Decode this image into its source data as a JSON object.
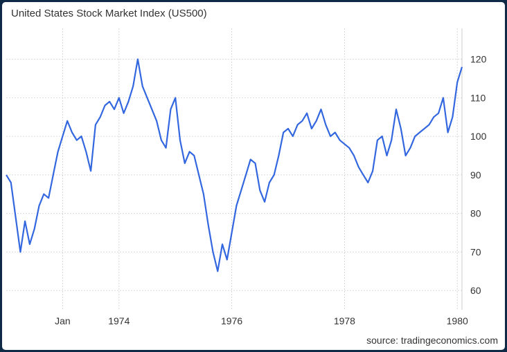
{
  "header": {
    "title": "United States Stock Market Index (US500)"
  },
  "footer": {
    "source": "source: tradingeconomics.com"
  },
  "colors": {
    "line": "#3367e0",
    "grid": "#d9d9d9",
    "frame": "#0e2a47"
  },
  "chart_data": {
    "type": "line",
    "title": "United States Stock Market Index (US500)",
    "x_tick_labels": [
      "Jan",
      "1974",
      "1976",
      "1978",
      "1980"
    ],
    "y_ticks": [
      60,
      70,
      80,
      90,
      100,
      110,
      120
    ],
    "xlim": [
      "1972-01",
      "1980-02"
    ],
    "ylim": [
      55,
      128
    ],
    "grid": true,
    "legend": "none",
    "series": [
      {
        "x": [
          "1972-01",
          "1972-02",
          "1972-03",
          "1972-04",
          "1972-05",
          "1972-06",
          "1972-07",
          "1972-08",
          "1972-09",
          "1972-10",
          "1972-11",
          "1972-12",
          "1973-01",
          "1973-02",
          "1973-03",
          "1973-04",
          "1973-05",
          "1973-06",
          "1973-07",
          "1973-08",
          "1973-09",
          "1973-10",
          "1973-11",
          "1973-12",
          "1974-01",
          "1974-02",
          "1974-03",
          "1974-04",
          "1974-05",
          "1974-06",
          "1974-07",
          "1974-08",
          "1974-09",
          "1974-10",
          "1974-11",
          "1974-12",
          "1975-01",
          "1975-02",
          "1975-03",
          "1975-04",
          "1975-05",
          "1975-06",
          "1975-07",
          "1975-08",
          "1975-09",
          "1975-10",
          "1975-11",
          "1975-12",
          "1976-01",
          "1976-02",
          "1976-03",
          "1976-04",
          "1976-05",
          "1976-06",
          "1976-07",
          "1976-08",
          "1976-09",
          "1976-10",
          "1976-11",
          "1976-12",
          "1977-01",
          "1977-02",
          "1977-03",
          "1977-04",
          "1977-05",
          "1977-06",
          "1977-07",
          "1977-08",
          "1977-09",
          "1977-10",
          "1977-11",
          "1977-12",
          "1978-01",
          "1978-02",
          "1978-03",
          "1978-04",
          "1978-05",
          "1978-06",
          "1978-07",
          "1978-08",
          "1978-09",
          "1978-10",
          "1978-11",
          "1978-12",
          "1979-01",
          "1979-02",
          "1979-03",
          "1979-04",
          "1979-05",
          "1979-06",
          "1979-07",
          "1979-08",
          "1979-09",
          "1979-10",
          "1979-11",
          "1979-12",
          "1980-01",
          "1980-02"
        ],
        "values": [
          90,
          88,
          79,
          70,
          78,
          72,
          76,
          82,
          85,
          84,
          90,
          96,
          100,
          104,
          101,
          99,
          100,
          96,
          91,
          103,
          105,
          108,
          109,
          107,
          110,
          106,
          109,
          113,
          120,
          113,
          110,
          107,
          104,
          99,
          97,
          107,
          110,
          99,
          93,
          96,
          95,
          90,
          85,
          77,
          70,
          65,
          72,
          68,
          75,
          82,
          86,
          90,
          94,
          93,
          86,
          83,
          88,
          90,
          95,
          101,
          102,
          100,
          103,
          104,
          106,
          102,
          104,
          107,
          103,
          100,
          101,
          99,
          98,
          97,
          95,
          92,
          90,
          88,
          91,
          99,
          100,
          95,
          99,
          107,
          102,
          95,
          97,
          100,
          101,
          102,
          103,
          105,
          106,
          110,
          101,
          105,
          114,
          118
        ]
      }
    ]
  }
}
